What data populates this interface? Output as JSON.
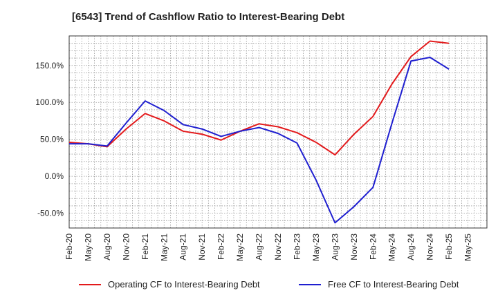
{
  "title": "[6543]  Trend of Cashflow Ratio to Interest-Bearing Debt",
  "chart_data": {
    "type": "line",
    "title": "[6543]  Trend of Cashflow Ratio to Interest-Bearing Debt",
    "xlabel": "",
    "ylabel": "",
    "x_ticks": [
      "Feb-20",
      "May-20",
      "Aug-20",
      "Nov-20",
      "Feb-21",
      "May-21",
      "Aug-21",
      "Nov-21",
      "Feb-22",
      "May-22",
      "Aug-22",
      "Nov-22",
      "Feb-23",
      "May-23",
      "Aug-23",
      "Nov-23",
      "Feb-24",
      "May-24",
      "Aug-24",
      "Nov-24",
      "Feb-25",
      "May-25"
    ],
    "y_ticks": [
      "-50.0%",
      "0.0%",
      "50.0%",
      "100.0%",
      "150.0%"
    ],
    "ylim": [
      -70,
      190
    ],
    "grid": true,
    "legend_position": "bottom",
    "series": [
      {
        "name": "Operating CF to Interest-Bearing Debt",
        "color": "#e31a1c",
        "values": [
          46,
          44,
          40,
          64,
          85,
          75,
          61,
          57,
          49,
          61,
          71,
          67,
          59,
          46,
          29,
          57,
          81,
          125,
          162,
          183,
          180
        ]
      },
      {
        "name": "Free CF to Interest-Bearing Debt",
        "color": "#1f1fd0",
        "values": [
          44,
          44,
          41,
          72,
          102,
          89,
          70,
          64,
          54,
          61,
          66,
          58,
          45,
          -5,
          -63,
          -41,
          -15,
          72,
          156,
          161,
          145
        ]
      }
    ]
  }
}
